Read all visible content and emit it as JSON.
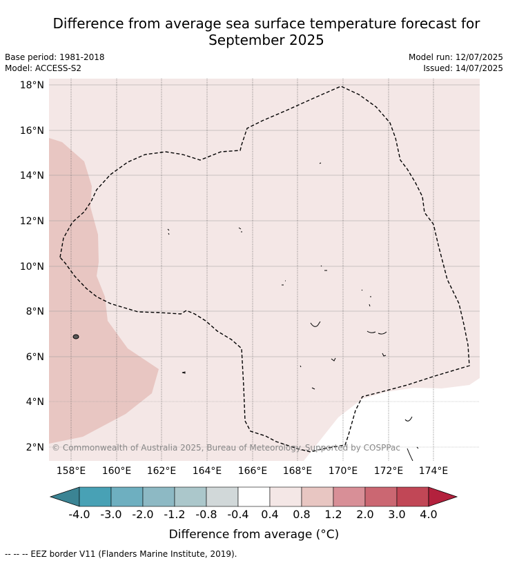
{
  "title_line1": "Difference from average sea surface temperature forecast for",
  "title_line2": "September 2025",
  "base_period": "Base period: 1981-2018",
  "model": "Model: ACCESS-S2",
  "model_run": "Model run: 12/07/2025",
  "issued": "Issued: 14/07/2025",
  "copyright": "© Commonwealth of Australia 2025, Bureau of Meteorology. Supported by COSPPac",
  "lat_ticks": [
    "18°N",
    "16°N",
    "14°N",
    "12°N",
    "10°N",
    "8°N",
    "6°N",
    "4°N",
    "2°N"
  ],
  "lon_ticks": [
    "158°E",
    "160°E",
    "162°E",
    "164°E",
    "166°E",
    "168°E",
    "170°E",
    "172°E",
    "174°E"
  ],
  "colorbar": {
    "labels": [
      "-4.0",
      "-3.0",
      "-2.0",
      "-1.2",
      "-0.8",
      "-0.4",
      "0.4",
      "0.8",
      "1.2",
      "2.0",
      "3.0",
      "4.0"
    ],
    "colors": [
      "#3b8494",
      "#48a1b5",
      "#6eafc0",
      "#8db9c4",
      "#abc7cb",
      "#d1d8d9",
      "#ffffff",
      "#f4e7e6",
      "#e8c6c2",
      "#d88f97",
      "#cb6772",
      "#c14756",
      "#b3213d"
    ],
    "title": "Difference from average (°C)"
  },
  "footnote": "--  --  -- EEZ border V11 (Flanders Marine Institute, 2019)."
}
